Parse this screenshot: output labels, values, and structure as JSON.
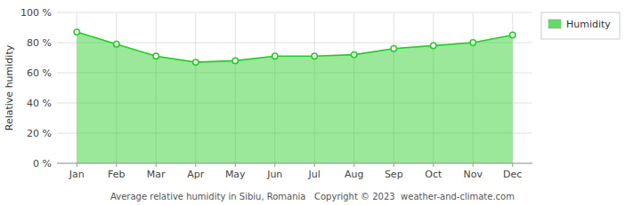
{
  "chart_data": {
    "type": "area",
    "categories": [
      "Jan",
      "Feb",
      "Mar",
      "Apr",
      "May",
      "Jun",
      "Jul",
      "Aug",
      "Sep",
      "Oct",
      "Nov",
      "Dec"
    ],
    "series": [
      {
        "name": "Humidity",
        "color": "#22cc22",
        "marker": "circle",
        "values": [
          87,
          79,
          71,
          67,
          68,
          71,
          71,
          72,
          76,
          78,
          80,
          85
        ]
      }
    ],
    "y_label": "Relative humidity",
    "ylim": [
      0,
      100
    ],
    "yticks": [
      {
        "value": 0,
        "label": "0 %"
      },
      {
        "value": 20,
        "label": "20 %"
      },
      {
        "value": 40,
        "label": "40 %"
      },
      {
        "value": 60,
        "label": "60 %"
      },
      {
        "value": 80,
        "label": "80 %"
      },
      {
        "value": 100,
        "label": "100 %"
      }
    ],
    "grid": true,
    "legend": "right",
    "annotations": [
      "Average relative humidity in Sibiu, Romania   Copyright © 2023  weather-and-climate.com"
    ]
  }
}
